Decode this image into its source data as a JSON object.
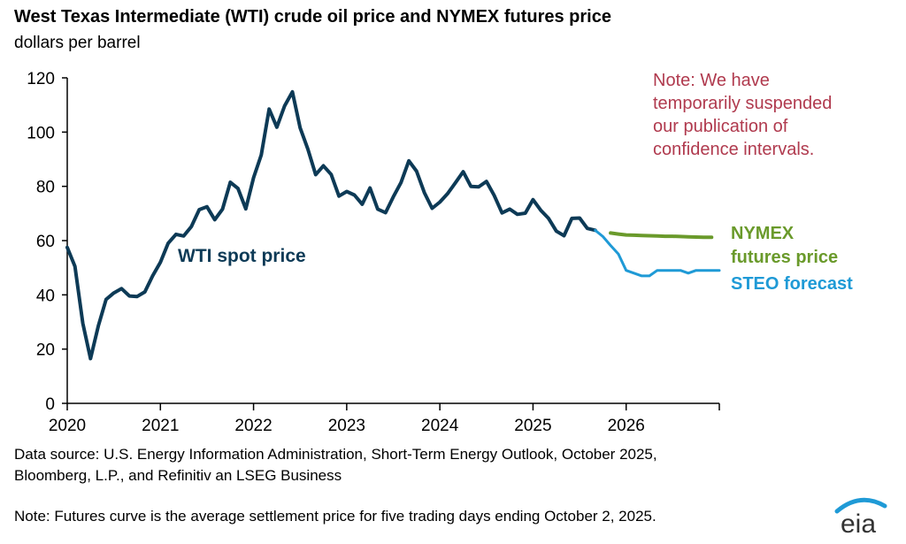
{
  "chart_data": {
    "type": "line",
    "title": "West Texas Intermediate (WTI) crude oil price and NYMEX futures price",
    "subtitle": "dollars per barrel",
    "ylim": [
      0,
      120
    ],
    "yticks": [
      0,
      20,
      40,
      60,
      80,
      100,
      120
    ],
    "xlim": [
      2020,
      2027
    ],
    "xticks": [
      "2020",
      "2021",
      "2022",
      "2023",
      "2024",
      "2025",
      "2026"
    ],
    "series": [
      {
        "name": "WTI spot price",
        "label": "WTI spot price",
        "color": "#0d3a56",
        "x": [
          2020.0,
          2020.083,
          2020.167,
          2020.25,
          2020.333,
          2020.417,
          2020.5,
          2020.583,
          2020.667,
          2020.75,
          2020.833,
          2020.917,
          2021.0,
          2021.083,
          2021.167,
          2021.25,
          2021.333,
          2021.417,
          2021.5,
          2021.583,
          2021.667,
          2021.75,
          2021.833,
          2021.917,
          2022.0,
          2022.083,
          2022.167,
          2022.25,
          2022.333,
          2022.417,
          2022.5,
          2022.583,
          2022.667,
          2022.75,
          2022.833,
          2022.917,
          2023.0,
          2023.083,
          2023.167,
          2023.25,
          2023.333,
          2023.417,
          2023.5,
          2023.583,
          2023.667,
          2023.75,
          2023.833,
          2023.917,
          2024.0,
          2024.083,
          2024.167,
          2024.25,
          2024.333,
          2024.417,
          2024.5,
          2024.583,
          2024.667,
          2024.75,
          2024.833,
          2024.917,
          2025.0,
          2025.083,
          2025.167,
          2025.25,
          2025.333,
          2025.417,
          2025.5,
          2025.583,
          2025.667
        ],
        "values": [
          57.5,
          50.5,
          29.5,
          16.5,
          28.5,
          38.3,
          40.7,
          42.3,
          39.6,
          39.4,
          41.1,
          47.0,
          52.0,
          59.0,
          62.3,
          61.7,
          65.2,
          71.4,
          72.5,
          67.7,
          71.6,
          81.5,
          79.2,
          71.7,
          83.2,
          91.6,
          108.5,
          101.8,
          109.6,
          114.8,
          101.6,
          93.7,
          84.3,
          87.6,
          84.4,
          76.4,
          78.1,
          76.8,
          73.4,
          79.4,
          71.6,
          70.3,
          76.1,
          81.4,
          89.4,
          85.6,
          77.7,
          71.9,
          74.2,
          77.3,
          81.3,
          85.4,
          80.0,
          79.8,
          81.8,
          76.7,
          70.2,
          71.6,
          69.7,
          70.1,
          75.1,
          71.2,
          68.2,
          63.5,
          61.8,
          68.2,
          68.3,
          64.5,
          63.8
        ]
      },
      {
        "name": "NYMEX futures price",
        "label": [
          "NYMEX",
          "futures price"
        ],
        "color": "#6a9a2b",
        "x": [
          2025.833,
          2025.917,
          2026.0,
          2026.083,
          2026.167,
          2026.25,
          2026.333,
          2026.417,
          2026.5,
          2026.583,
          2026.667,
          2026.75,
          2026.833,
          2026.917
        ],
        "values": [
          62.8,
          62.4,
          62.1,
          62.0,
          61.9,
          61.8,
          61.7,
          61.6,
          61.6,
          61.5,
          61.4,
          61.3,
          61.2,
          61.2
        ]
      },
      {
        "name": "STEO forecast",
        "label": "STEO forecast",
        "color": "#1f9ad6",
        "x": [
          2025.667,
          2025.75,
          2025.833,
          2025.917,
          2026.0,
          2026.083,
          2026.167,
          2026.25,
          2026.333,
          2026.417,
          2026.5,
          2026.583,
          2026.667,
          2026.75,
          2026.833,
          2026.917,
          2027.0
        ],
        "values": [
          63.8,
          61.5,
          58.2,
          55.0,
          49.0,
          48.0,
          47.0,
          47.0,
          49.0,
          49.0,
          49.0,
          49.0,
          48.0,
          49.0,
          49.0,
          49.0,
          49.0
        ]
      }
    ],
    "annotation": {
      "lines": [
        "Note: We have",
        "temporarily suspended",
        "our publication of",
        "confidence intervals."
      ],
      "color": "#b03a4e"
    }
  },
  "footer": {
    "source_line1": "Data source: U.S. Energy Information Administration, Short-Term Energy Outlook, October 2025,",
    "source_line2": "Bloomberg, L.P., and Refinitiv an LSEG Business",
    "note": "Note: Futures curve is the average settlement price for five trading days ending October 2, 2025.",
    "logo_text": "eia"
  }
}
